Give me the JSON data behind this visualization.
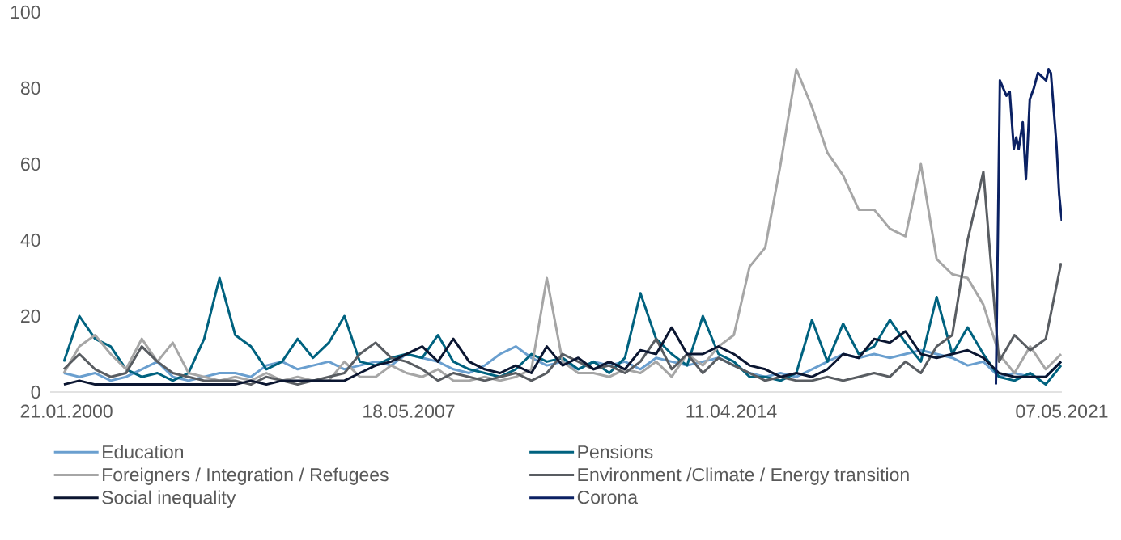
{
  "chart_data": {
    "type": "line",
    "x": [
      "2000-01",
      "2000-05",
      "2000-09",
      "2001-01",
      "2001-05",
      "2001-09",
      "2002-01",
      "2002-05",
      "2002-09",
      "2003-01",
      "2003-05",
      "2003-09",
      "2004-01",
      "2004-05",
      "2004-09",
      "2005-01",
      "2005-05",
      "2005-09",
      "2006-01",
      "2006-05",
      "2006-09",
      "2007-01",
      "2007-05",
      "2007-09",
      "2008-01",
      "2008-05",
      "2008-09",
      "2009-01",
      "2009-05",
      "2009-09",
      "2010-01",
      "2010-05",
      "2010-09",
      "2011-01",
      "2011-05",
      "2011-09",
      "2012-01",
      "2012-05",
      "2012-09",
      "2013-01",
      "2013-05",
      "2013-09",
      "2014-01",
      "2014-05",
      "2014-09",
      "2015-01",
      "2015-05",
      "2015-09",
      "2016-01",
      "2016-05",
      "2016-09",
      "2017-01",
      "2017-05",
      "2017-09",
      "2018-01",
      "2018-05",
      "2018-09",
      "2019-01",
      "2019-05",
      "2019-09",
      "2020-01",
      "2020-05",
      "2020-09",
      "2021-01",
      "2021-05"
    ],
    "series": [
      {
        "name": "Education",
        "color": "#6a9fcf",
        "values": [
          5,
          4,
          5,
          3,
          4,
          6,
          8,
          4,
          3,
          4,
          5,
          5,
          4,
          7,
          8,
          6,
          7,
          8,
          6,
          7,
          8,
          7,
          10,
          9,
          8,
          6,
          5,
          7,
          10,
          12,
          9,
          7,
          8,
          6,
          8,
          7,
          8,
          6,
          9,
          8,
          7,
          8,
          9,
          7,
          5,
          4,
          5,
          4,
          6,
          8,
          10,
          9,
          10,
          9,
          10,
          11,
          10,
          9,
          7,
          8,
          4,
          5,
          4,
          4,
          8
        ]
      },
      {
        "name": "Pensions",
        "color": "#00627f",
        "values": [
          8,
          20,
          14,
          12,
          6,
          4,
          5,
          3,
          5,
          14,
          30,
          15,
          12,
          6,
          8,
          14,
          9,
          13,
          20,
          8,
          7,
          9,
          10,
          9,
          15,
          8,
          6,
          5,
          4,
          6,
          10,
          8,
          9,
          6,
          8,
          5,
          9,
          26,
          14,
          10,
          7,
          20,
          10,
          8,
          4,
          4,
          3,
          5,
          19,
          8,
          18,
          10,
          12,
          19,
          13,
          8,
          25,
          10,
          17,
          10,
          4,
          3,
          5,
          2,
          7
        ]
      },
      {
        "name": "Foreigners / Integration / Refugees",
        "color": "#a6a6a6",
        "values": [
          5,
          12,
          15,
          10,
          6,
          14,
          8,
          13,
          5,
          4,
          3,
          4,
          3,
          5,
          3,
          4,
          3,
          3,
          8,
          4,
          4,
          7,
          5,
          4,
          6,
          3,
          3,
          4,
          3,
          4,
          6,
          30,
          8,
          5,
          5,
          4,
          6,
          5,
          8,
          4,
          10,
          7,
          12,
          15,
          33,
          38,
          60,
          85,
          75,
          63,
          57,
          48,
          48,
          43,
          41,
          60,
          35,
          31,
          30,
          23,
          10,
          5,
          12,
          6,
          10
        ]
      },
      {
        "name": "Environment /Climate / Energy transition",
        "color": "#595d62",
        "values": [
          6,
          10,
          6,
          4,
          5,
          12,
          8,
          5,
          4,
          3,
          3,
          3,
          2,
          4,
          3,
          2,
          3,
          4,
          5,
          10,
          13,
          9,
          8,
          6,
          3,
          5,
          4,
          3,
          4,
          5,
          3,
          5,
          10,
          8,
          6,
          7,
          5,
          8,
          14,
          6,
          10,
          5,
          9,
          7,
          5,
          3,
          4,
          3,
          3,
          4,
          3,
          4,
          5,
          4,
          8,
          5,
          12,
          15,
          40,
          58,
          8,
          15,
          11,
          14,
          34
        ]
      },
      {
        "name": "Social inequality",
        "color": "#0b1631",
        "values": [
          2,
          3,
          2,
          2,
          2,
          2,
          2,
          2,
          2,
          2,
          2,
          2,
          3,
          2,
          3,
          3,
          3,
          3,
          3,
          5,
          7,
          8,
          10,
          12,
          8,
          14,
          8,
          6,
          5,
          7,
          5,
          12,
          7,
          9,
          6,
          8,
          6,
          11,
          10,
          17,
          10,
          10,
          12,
          10,
          7,
          6,
          4,
          5,
          4,
          6,
          10,
          9,
          14,
          13,
          16,
          10,
          9,
          10,
          11,
          9,
          5,
          4,
          4,
          4,
          8
        ]
      },
      {
        "name": "Corona",
        "color": "#0b2163",
        "x": [
          "2019-12-08",
          "2020-01-08",
          "2020-02-28",
          "2020-03-25",
          "2020-04-26",
          "2020-05-15",
          "2020-06-03",
          "2020-07-05",
          "2020-07-30",
          "2020-08-29",
          "2020-09-30",
          "2020-11-01",
          "2020-12-03",
          "2021-01-04",
          "2021-01-23",
          "2021-02-10",
          "2021-03-26",
          "2021-04-16",
          "2021-05-07"
        ],
        "values": [
          2,
          82,
          78,
          79,
          64,
          67,
          64,
          71,
          56,
          77,
          80,
          84,
          83,
          82,
          85,
          84,
          65,
          52,
          45
        ]
      }
    ],
    "xlim": [
      "1999-09-16",
      "2021-05-07"
    ],
    "xticks": [
      {
        "value": "2000-01-21",
        "label": "21.01.2000"
      },
      {
        "value": "2007-05-18",
        "label": "18.05.2007"
      },
      {
        "value": "2014-04-11",
        "label": "11.04.2014"
      },
      {
        "value": "2021-05-07",
        "label": "07.05.2021"
      }
    ],
    "ylim": [
      0,
      100
    ],
    "yticks": [
      0,
      20,
      40,
      60,
      80,
      100
    ],
    "legend": "bottom"
  }
}
